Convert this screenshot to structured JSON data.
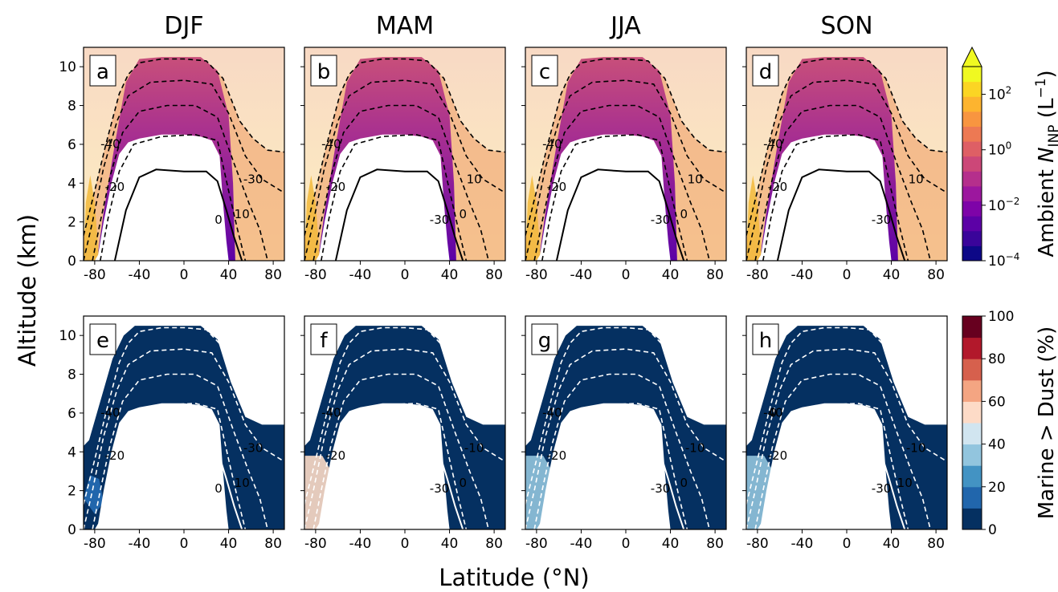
{
  "figure": {
    "y_label": "Altitude (km)",
    "x_label": "Latitude (°N)"
  },
  "chart_data": [
    {
      "type": "heatmap",
      "panels": [
        {
          "letter": "a",
          "season": "DJF",
          "isotherm_labels": [
            "-40",
            "-20",
            "0",
            "-30",
            "10"
          ]
        },
        {
          "letter": "b",
          "season": "MAM",
          "isotherm_labels": [
            "-40",
            "-20",
            "-30",
            "10",
            "0"
          ]
        },
        {
          "letter": "c",
          "season": "JJA",
          "isotherm_labels": [
            "-40",
            "-20",
            "-30",
            "10",
            "0"
          ]
        },
        {
          "letter": "d",
          "season": "SON",
          "isotherm_labels": [
            "-40",
            "-20",
            "-30",
            "10"
          ]
        }
      ],
      "x_ticks": [
        "-80",
        "-40",
        "0",
        "40",
        "80"
      ],
      "y_ticks": [
        "0",
        "2",
        "4",
        "6",
        "8",
        "10"
      ],
      "xlim": [
        -90,
        90
      ],
      "ylim": [
        0,
        11
      ],
      "colorbar": {
        "label_main": "Ambient ",
        "label_var": "N",
        "label_sub": "INP",
        "label_unit": " (L",
        "label_exp": "−1",
        "label_close": ")",
        "scale": "log",
        "tick_bases": [
          "10",
          "10",
          "10",
          "10"
        ],
        "tick_exps": [
          "−4",
          "−2",
          "0",
          "2"
        ],
        "range": [
          0.0001,
          1000
        ],
        "extend": "max",
        "colors": [
          "#0d0887",
          "#3a049a",
          "#5c01a6",
          "#7e03a8",
          "#9c179e",
          "#b52f8c",
          "#cc4778",
          "#de5f65",
          "#ed7953",
          "#f89540",
          "#fdb42f",
          "#fbd524",
          "#f0f921"
        ]
      }
    },
    {
      "type": "heatmap",
      "panels": [
        {
          "letter": "e",
          "isotherm_labels": [
            "-40",
            "-20",
            "0",
            "-30",
            "10"
          ]
        },
        {
          "letter": "f",
          "isotherm_labels": [
            "-40",
            "-20",
            "-30",
            "-10",
            "0"
          ]
        },
        {
          "letter": "g",
          "isotherm_labels": [
            "-40",
            "-20",
            "-30",
            "-10",
            "0"
          ]
        },
        {
          "letter": "h",
          "isotherm_labels": [
            "-40",
            "-20",
            "-30",
            "-10",
            "10",
            "0"
          ]
        }
      ],
      "x_ticks": [
        "-80",
        "-40",
        "0",
        "40",
        "80"
      ],
      "y_ticks": [
        "0",
        "2",
        "4",
        "6",
        "8",
        "10"
      ],
      "xlim": [
        -90,
        90
      ],
      "ylim": [
        0,
        11
      ],
      "colorbar": {
        "label": "Marine > Dust (%)",
        "ticks": [
          "0",
          "20",
          "40",
          "60",
          "80",
          "100"
        ],
        "range": [
          0,
          100
        ],
        "colors": [
          "#053061",
          "#2166ac",
          "#4393c3",
          "#92c5de",
          "#d1e5f0",
          "#fddbc7",
          "#f4a582",
          "#d6604d",
          "#b2182b",
          "#67001f"
        ]
      }
    }
  ]
}
